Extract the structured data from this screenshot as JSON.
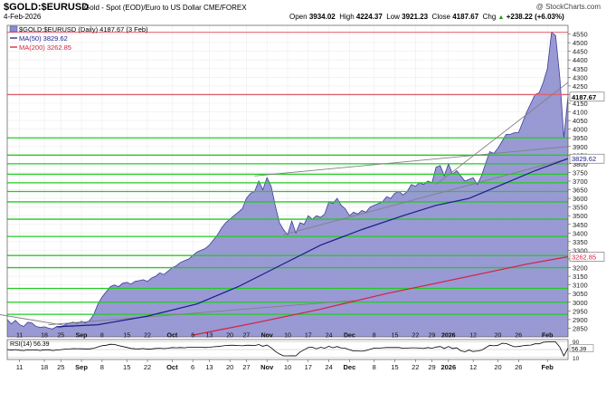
{
  "header": {
    "symbol": "$GOLD:$EURUSD",
    "description": "Gold - Spot (EOD)/Euro to US Dollar  CME/FOREX",
    "date": "4-Feb-2026",
    "watermark": "@ StockCharts.com",
    "open_label": "Open",
    "open": "3934.02",
    "high_label": "High",
    "high": "4224.37",
    "low_label": "Low",
    "low": "3921.23",
    "close_label": "Close",
    "close": "4187.67",
    "chg_label": "Chg",
    "chg": "+238.22 (+6.03%)",
    "chg_arrow": "▲"
  },
  "legend": {
    "price": "$GOLD:$EURUSD (Daily) 4187.67 (3 Feb)",
    "ma50": "MA(50) 3829.62",
    "ma200": "MA(200) 3262.85"
  },
  "rsi_legend": "RSI(14) 56.39",
  "colors": {
    "area_fill": "#8e8ecf",
    "area_line": "#3c3c9a",
    "ma50": "#1c1c8c",
    "ma200": "#d42040",
    "support": "#22cc22",
    "resistance": "#e06070",
    "trend": "#808080",
    "rsi_line": "#000000"
  },
  "chart_data": {
    "type": "area",
    "title": "$GOLD:$EURUSD",
    "ylim": [
      2800,
      4600
    ],
    "y_ticks": [
      2850,
      2900,
      2950,
      3000,
      3050,
      3100,
      3150,
      3200,
      3250,
      3300,
      3350,
      3400,
      3450,
      3500,
      3550,
      3600,
      3650,
      3700,
      3750,
      3800,
      3850,
      3900,
      3950,
      4000,
      4050,
      4100,
      4150,
      4200,
      4250,
      4300,
      4350,
      4400,
      4450,
      4500,
      4550
    ],
    "x_labels": [
      "11",
      "18",
      "25",
      "Sep",
      "8",
      "15",
      "22",
      "Oct",
      "6",
      "13",
      "20",
      "27",
      "Nov",
      "10",
      "17",
      "24",
      "Dec",
      "8",
      "15",
      "22",
      "29",
      "2026",
      "12",
      "20",
      "26",
      "Feb"
    ],
    "x_label_bold": [
      "Sep",
      "Oct",
      "Nov",
      "Dec",
      "2026",
      "Feb"
    ],
    "series": [
      {
        "name": "$GOLD:$EURUSD (Daily)",
        "type": "area",
        "values": [
          2900,
          2875,
          2895,
          2870,
          2860,
          2885,
          2880,
          2860,
          2855,
          2858,
          2850,
          2845,
          2860,
          2855,
          2870,
          2880,
          2885,
          2878,
          2890,
          2880,
          2895,
          2930,
          2990,
          3030,
          3060,
          3090,
          3100,
          3090,
          3110,
          3115,
          3105,
          3120,
          3125,
          3130,
          3120,
          3140,
          3150,
          3170,
          3160,
          3180,
          3200,
          3210,
          3230,
          3240,
          3250,
          3270,
          3290,
          3300,
          3310,
          3330,
          3360,
          3390,
          3430,
          3460,
          3480,
          3500,
          3520,
          3540,
          3600,
          3630,
          3640,
          3700,
          3650,
          3720,
          3670,
          3560,
          3460,
          3420,
          3390,
          3470,
          3400,
          3460,
          3450,
          3500,
          3480,
          3500,
          3490,
          3510,
          3580,
          3570,
          3600,
          3560,
          3540,
          3500,
          3520,
          3510,
          3530,
          3520,
          3550,
          3560,
          3570,
          3580,
          3610,
          3600,
          3630,
          3640,
          3620,
          3640,
          3680,
          3670,
          3690,
          3680,
          3700,
          3690,
          3780,
          3790,
          3730,
          3800,
          3740,
          3760,
          3730,
          3700,
          3710,
          3720,
          3680,
          3730,
          3800,
          3870,
          3860,
          3890,
          3930,
          3970,
          3970,
          3980,
          3980,
          4040,
          4100,
          4150,
          4200,
          4210,
          4270,
          4350,
          4560,
          4540,
          4300,
          3950,
          4187.67
        ]
      },
      {
        "name": "MA(50)",
        "type": "line",
        "last": 3829.62
      },
      {
        "name": "MA(200)",
        "type": "line",
        "last": 3262.85
      }
    ],
    "current_price": 4187.67,
    "ma50_last": 3829.62,
    "ma200_last": 3262.85,
    "horizontal_levels": [
      4200,
      3950,
      3850,
      3800,
      3740,
      3690,
      3640,
      3580,
      3480,
      3380,
      3270,
      3200,
      3080,
      3000,
      2930
    ],
    "resistance_level": 4560,
    "rsi": {
      "title": "RSI(14)",
      "value": 56.39,
      "levels": [
        90,
        50,
        10
      ],
      "ylim": [
        0,
        100
      ]
    }
  }
}
